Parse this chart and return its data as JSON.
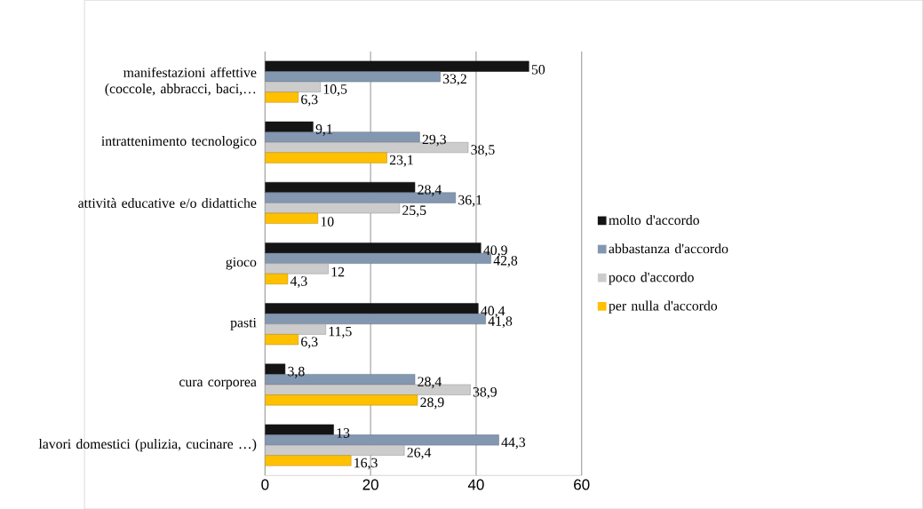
{
  "chart_data": {
    "type": "bar",
    "orientation": "horizontal",
    "categories": [
      "manifestazioni affettive (coccole, abbracci, baci,…",
      "intrattenimento tecnologico",
      "attività educative e/o didattiche",
      "gioco",
      "pasti",
      "cura corporea",
      "lavori domestici (pulizia, cucinare …)"
    ],
    "series": [
      {
        "name": "molto d'accordo",
        "color": "#141414",
        "values": [
          50,
          9.1,
          28.4,
          40.9,
          40.4,
          3.8,
          13
        ],
        "value_labels": [
          "50",
          "9,1",
          "28,4",
          "40,9",
          "40,4",
          "3,8",
          "13"
        ]
      },
      {
        "name": "abbastanza d'accordo",
        "color": "#8497b0",
        "values": [
          33.2,
          29.3,
          36.1,
          42.8,
          41.8,
          28.4,
          44.3
        ],
        "value_labels": [
          "33,2",
          "29,3",
          "36,1",
          "42,8",
          "41,8",
          "28,4",
          "44,3"
        ]
      },
      {
        "name": "poco d'accordo",
        "color": "#cccccc",
        "values": [
          10.5,
          38.5,
          25.5,
          12,
          11.5,
          38.9,
          26.4
        ],
        "value_labels": [
          "10,5",
          "38,5",
          "25,5",
          "12",
          "11,5",
          "38,9",
          "26,4"
        ]
      },
      {
        "name": "per nulla d'accordo",
        "color": "#ffc000",
        "values": [
          6.3,
          23.1,
          10,
          4.3,
          6.3,
          28.9,
          16.3
        ],
        "value_labels": [
          "6,3",
          "23,1",
          "10",
          "4,3",
          "6,3",
          "28,9",
          "16,3"
        ]
      }
    ],
    "xlim": [
      0,
      60
    ],
    "xticks": [
      0,
      20,
      40,
      60
    ],
    "grid": "x",
    "legend": "right"
  }
}
